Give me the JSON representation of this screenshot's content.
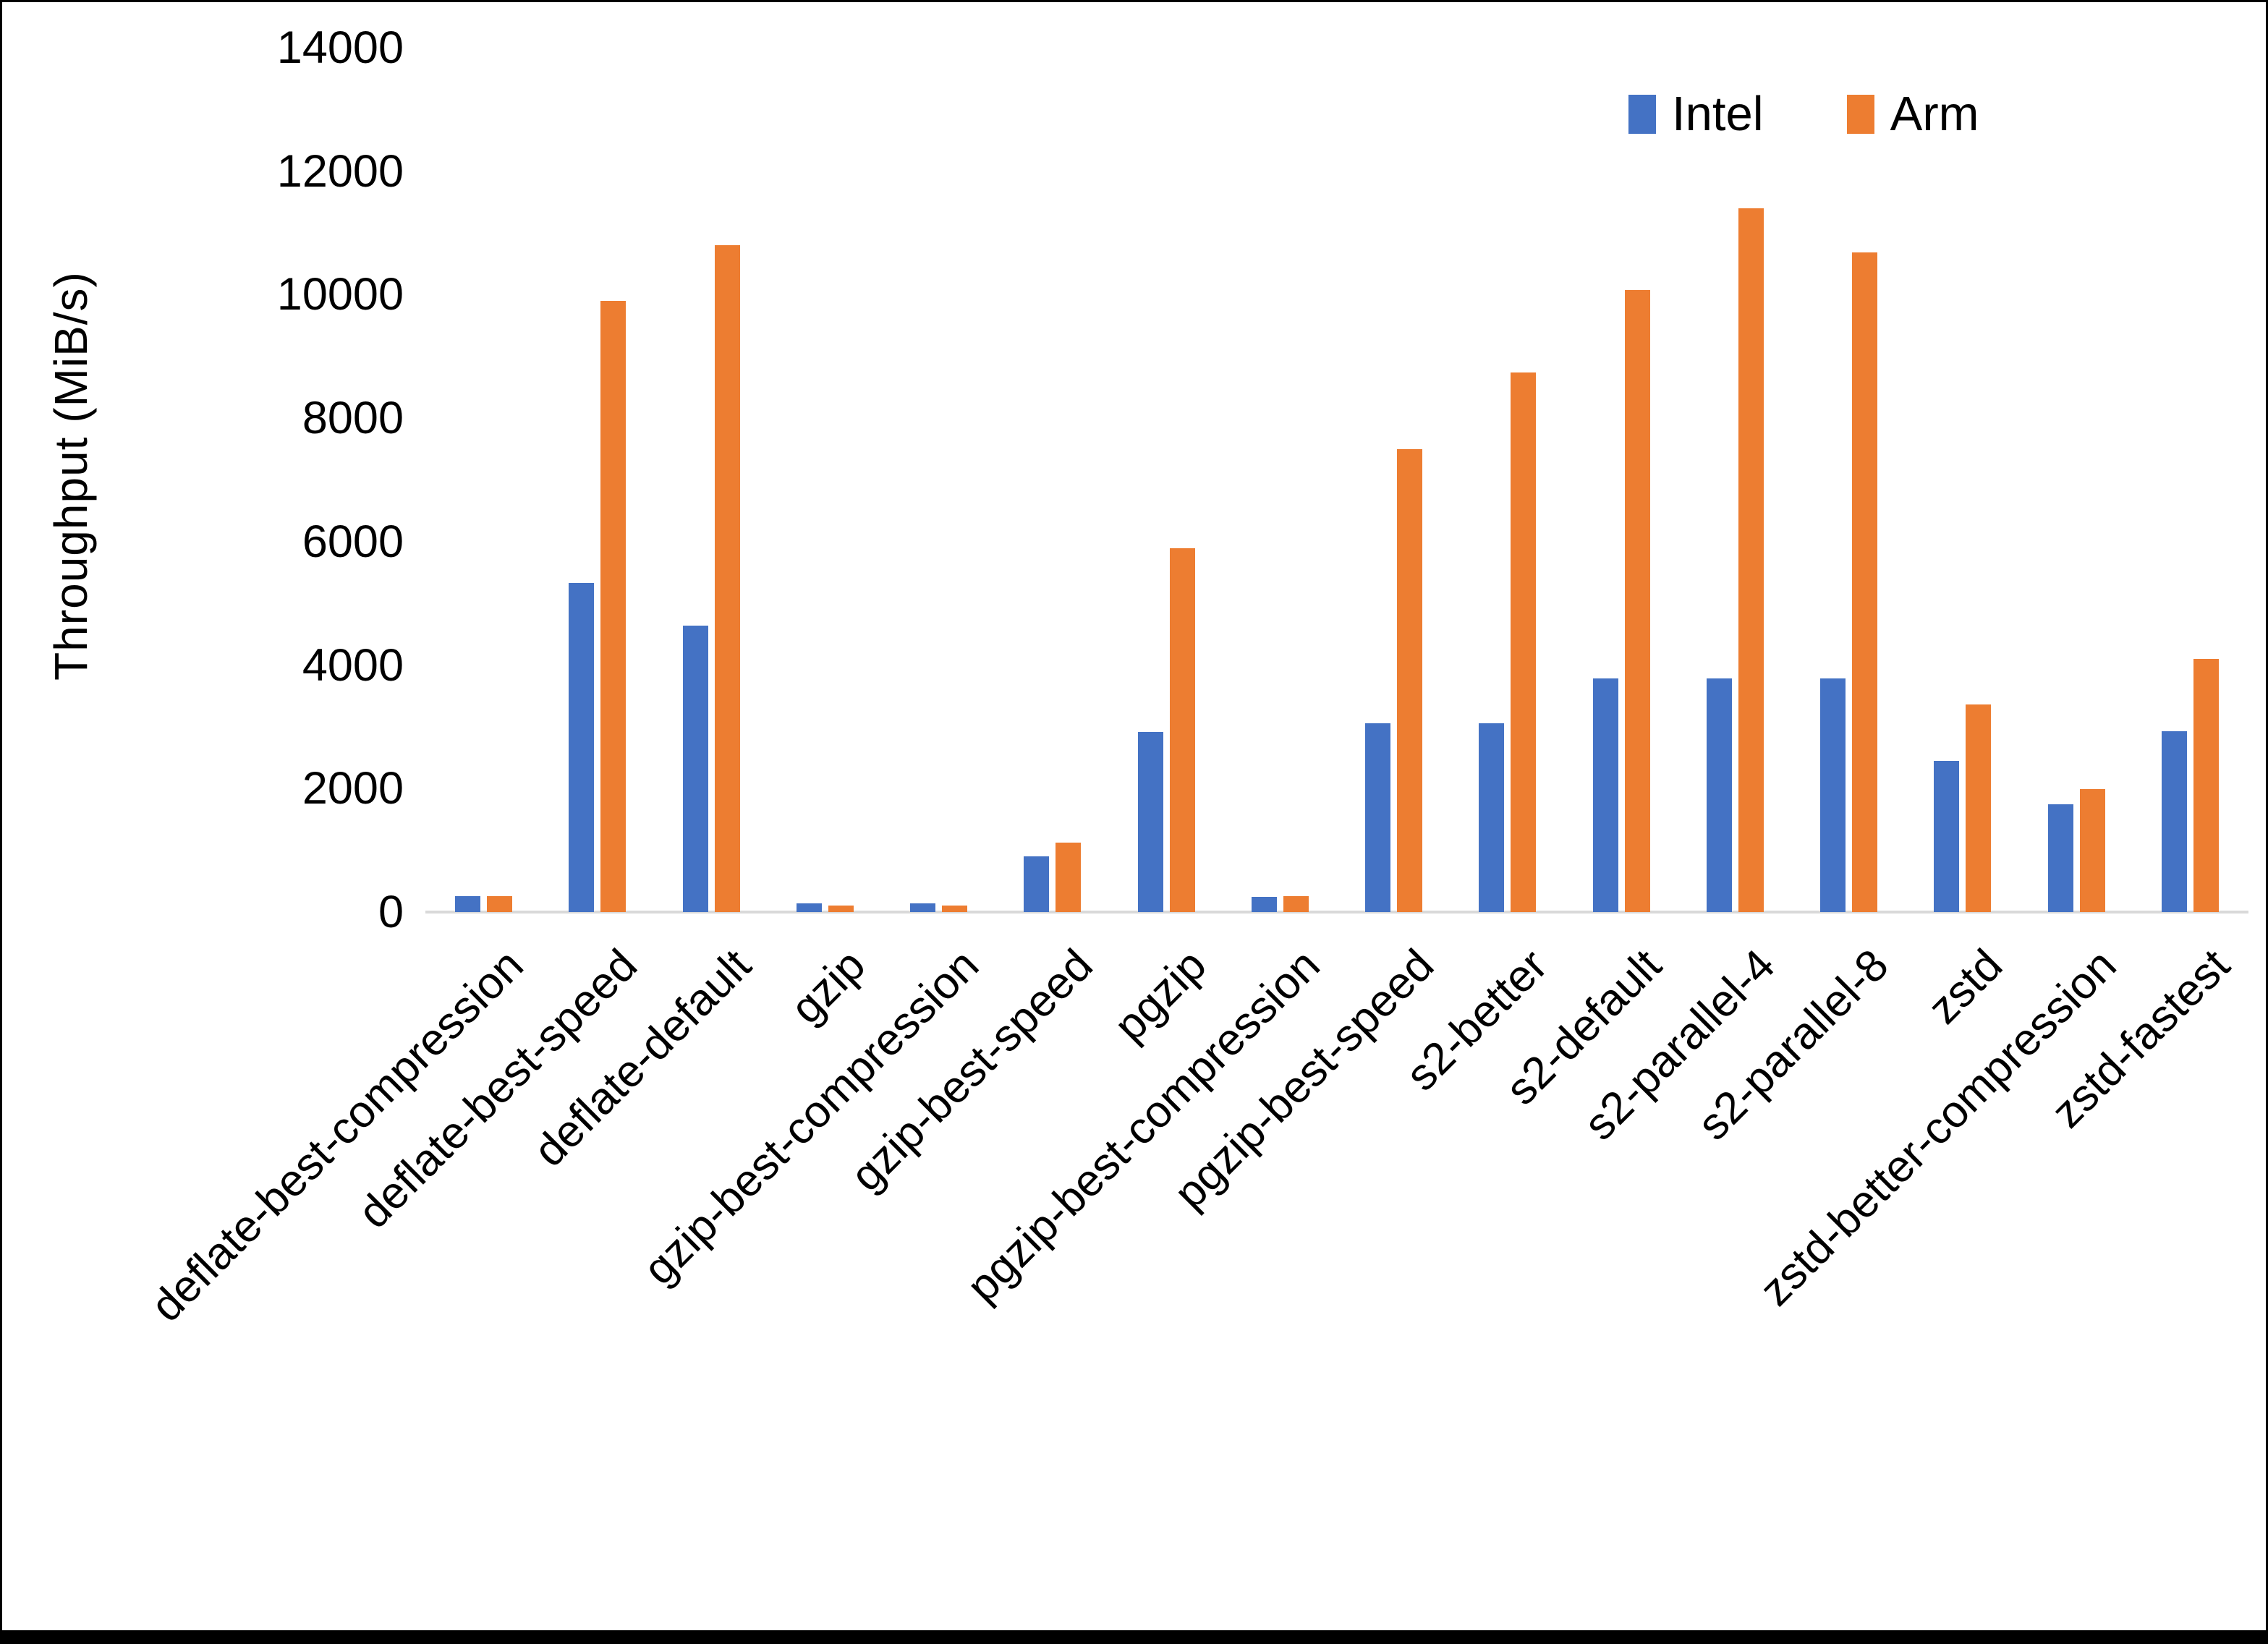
{
  "figure": {
    "background": "#ffffff",
    "border_color": "#000000"
  },
  "y_axis": {
    "title": "Throughput (MiB/s)",
    "tick_labels": [
      "0",
      "2000",
      "4000",
      "6000",
      "8000",
      "10000",
      "12000",
      "14000"
    ],
    "axis_line_color": "#d9d9d9"
  },
  "legend": {
    "items": [
      {
        "label": "Intel",
        "color": "#4472C4"
      },
      {
        "label": "Arm",
        "color": "#ED7D31"
      }
    ],
    "position": "top-right"
  },
  "chart_data": {
    "type": "bar",
    "title": "",
    "xlabel": "",
    "ylabel": "Throughput (MiB/s)",
    "ylim": [
      0,
      14000
    ],
    "ytick_step": 2000,
    "grid": false,
    "legend_position": "top-right",
    "categories": [
      "deflate-best-compression",
      "deflate-best-speed",
      "deflate-default",
      "gzip",
      "gzip-best-compression",
      "gzip-best-speed",
      "pgzip",
      "pgzip-best-compression",
      "pgzip-best-speed",
      "s2-better",
      "s2-default",
      "s2-parallel-4",
      "s2-parallel-8",
      "zstd",
      "zstd-better-compression",
      "zstd-fastest"
    ],
    "series": [
      {
        "name": "Intel",
        "color": "#4472C4",
        "values": [
          260,
          5330,
          4640,
          140,
          140,
          900,
          2920,
          250,
          3060,
          3060,
          3780,
          3780,
          3780,
          2450,
          1740,
          2930
        ]
      },
      {
        "name": "Arm",
        "color": "#ED7D31",
        "values": [
          255,
          9900,
          10800,
          100,
          100,
          1130,
          5890,
          260,
          7500,
          8740,
          10080,
          11400,
          10690,
          3360,
          1990,
          4100
        ]
      }
    ]
  }
}
